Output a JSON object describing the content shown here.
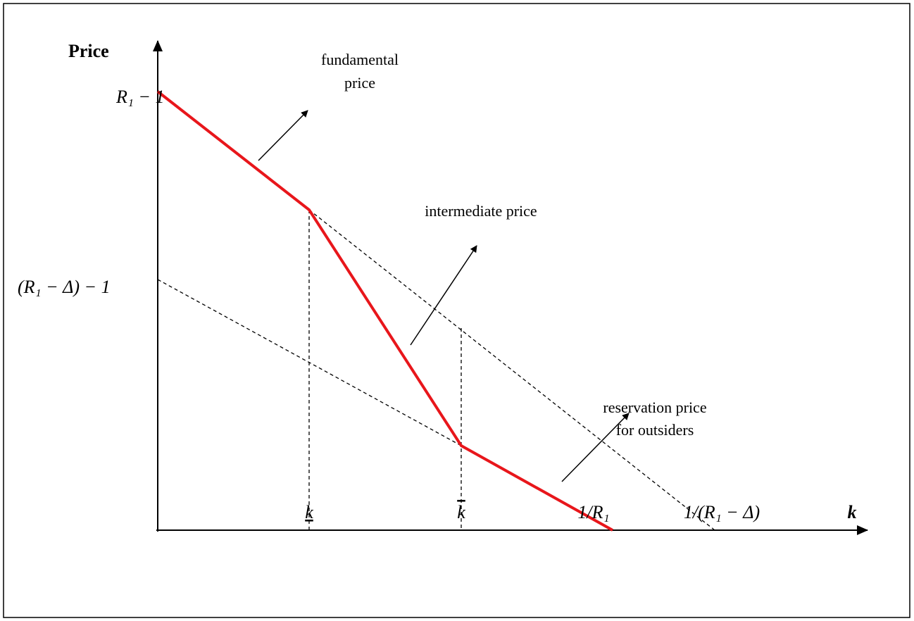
{
  "y_axis_label": "Price",
  "x_axis_label": "k",
  "y_labels": [
    "R₁ − 1",
    "(R₁ − Δ) − 1"
  ],
  "x_labels": [
    "k",
    "k",
    "1/R₁",
    "1/(R₁ − Δ)"
  ],
  "annotations": [
    {
      "lines": [
        "fundamental",
        "price"
      ]
    },
    {
      "lines": [
        "intermediate price"
      ]
    },
    {
      "lines": [
        "reservation price",
        "for outsiders"
      ]
    }
  ]
}
